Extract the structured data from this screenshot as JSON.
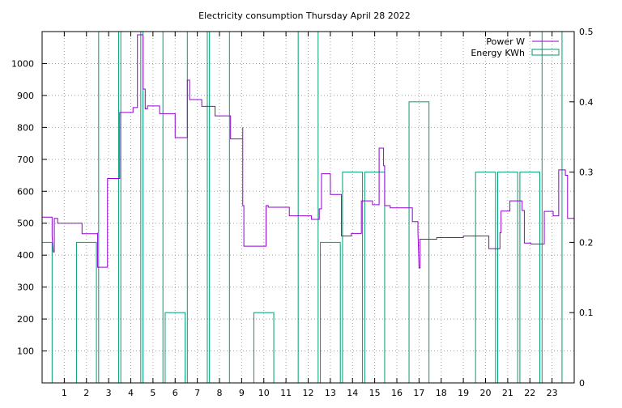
{
  "chart_data": {
    "type": "line",
    "title": "Electricity consumption Thursday April 28 2022",
    "xlabel": "",
    "ylabel": "",
    "y2label": "",
    "xlim": [
      0,
      24
    ],
    "ylim": [
      0,
      1100
    ],
    "y2lim": [
      0,
      0.5
    ],
    "grid": true,
    "legend_position": "top-right",
    "x_ticks": [
      "1",
      "2",
      "3",
      "4",
      "5",
      "6",
      "7",
      "8",
      "9",
      "10",
      "11",
      "12",
      "13",
      "14",
      "15",
      "16",
      "17",
      "18",
      "19",
      "20",
      "21",
      "22",
      "23"
    ],
    "y_ticks": [
      "100",
      "200",
      "300",
      "400",
      "500",
      "600",
      "700",
      "800",
      "900",
      "1000"
    ],
    "y2_ticks": [
      "0",
      "0.1",
      "0.2",
      "0.3",
      "0.4",
      "0.5"
    ],
    "colors": {
      "power": "#9400d3",
      "energy": "#009e73",
      "grid": "#a0a0a0"
    },
    "series": [
      {
        "name": "Power W",
        "axis": "y1",
        "style": "step-line",
        "points": [
          [
            0.0,
            519
          ],
          [
            0.45,
            519
          ],
          [
            0.45,
            460
          ],
          [
            0.5,
            410
          ],
          [
            0.55,
            410
          ],
          [
            0.55,
            515
          ],
          [
            0.7,
            515
          ],
          [
            0.7,
            500
          ],
          [
            1.8,
            500
          ],
          [
            1.8,
            467
          ],
          [
            2.5,
            467
          ],
          [
            2.5,
            470
          ],
          [
            2.5,
            362
          ],
          [
            2.95,
            362
          ],
          [
            2.95,
            640
          ],
          [
            3.5,
            640
          ],
          [
            3.5,
            847
          ],
          [
            4.1,
            847
          ],
          [
            4.1,
            862
          ],
          [
            4.3,
            862
          ],
          [
            4.3,
            1090
          ],
          [
            4.55,
            1090
          ],
          [
            4.55,
            920
          ],
          [
            4.65,
            920
          ],
          [
            4.65,
            858
          ],
          [
            4.75,
            858
          ],
          [
            4.75,
            867
          ],
          [
            5.3,
            867
          ],
          [
            5.3,
            843
          ],
          [
            6.0,
            843
          ],
          [
            6.0,
            768
          ],
          [
            6.55,
            768
          ],
          [
            6.55,
            948
          ],
          [
            6.65,
            948
          ],
          [
            6.65,
            887
          ],
          [
            7.2,
            887
          ],
          [
            7.2,
            866
          ],
          [
            7.8,
            866
          ],
          [
            7.8,
            836
          ],
          [
            8.5,
            836
          ],
          [
            8.5,
            764
          ],
          [
            9.05,
            764
          ],
          [
            9.05,
            800
          ],
          [
            9.05,
            555
          ],
          [
            9.1,
            555
          ],
          [
            9.1,
            428
          ],
          [
            10.1,
            428
          ],
          [
            10.1,
            555
          ],
          [
            10.2,
            555
          ],
          [
            10.2,
            550
          ],
          [
            11.15,
            550
          ],
          [
            11.15,
            523
          ],
          [
            12.15,
            523
          ],
          [
            12.15,
            512
          ],
          [
            12.5,
            512
          ],
          [
            12.5,
            545
          ],
          [
            12.6,
            545
          ],
          [
            12.6,
            655
          ],
          [
            13.0,
            655
          ],
          [
            13.0,
            590
          ],
          [
            13.5,
            590
          ],
          [
            13.5,
            460
          ],
          [
            13.95,
            460
          ],
          [
            13.95,
            468
          ],
          [
            14.4,
            468
          ],
          [
            14.4,
            570
          ],
          [
            14.9,
            570
          ],
          [
            14.9,
            558
          ],
          [
            15.2,
            558
          ],
          [
            15.2,
            735
          ],
          [
            15.4,
            735
          ],
          [
            15.4,
            680
          ],
          [
            15.45,
            680
          ],
          [
            15.45,
            555
          ],
          [
            15.7,
            555
          ],
          [
            15.7,
            548
          ],
          [
            16.7,
            548
          ],
          [
            16.7,
            505
          ],
          [
            16.95,
            505
          ],
          [
            16.95,
            476
          ],
          [
            17.0,
            360
          ],
          [
            17.05,
            360
          ],
          [
            17.05,
            450
          ],
          [
            17.8,
            450
          ],
          [
            17.8,
            455
          ],
          [
            19.0,
            455
          ],
          [
            19.0,
            460
          ],
          [
            20.15,
            460
          ],
          [
            20.15,
            420
          ],
          [
            20.65,
            420
          ],
          [
            20.65,
            470
          ],
          [
            20.7,
            470
          ],
          [
            20.7,
            538
          ],
          [
            21.1,
            538
          ],
          [
            21.1,
            570
          ],
          [
            21.65,
            570
          ],
          [
            21.65,
            540
          ],
          [
            21.75,
            540
          ],
          [
            21.75,
            438
          ],
          [
            22.05,
            438
          ],
          [
            22.05,
            435
          ],
          [
            22.65,
            435
          ],
          [
            22.65,
            537
          ],
          [
            23.05,
            537
          ],
          [
            23.05,
            523
          ],
          [
            23.3,
            523
          ],
          [
            23.3,
            667
          ],
          [
            23.6,
            667
          ],
          [
            23.6,
            650
          ],
          [
            23.7,
            650
          ],
          [
            23.7,
            515
          ],
          [
            24.0,
            515
          ]
        ]
      },
      {
        "name": "Energy KWh",
        "axis": "y2",
        "style": "hollow-bars",
        "bars": [
          {
            "x": 0.0,
            "value": 0.2
          },
          {
            "x": 1.0,
            "value": 0
          },
          {
            "x": 2.0,
            "value": 0.2
          },
          {
            "x": 3.0,
            "value": 0.5
          },
          {
            "x": 4.0,
            "value": 0.5
          },
          {
            "x": 5.0,
            "value": 0.5
          },
          {
            "x": 6.0,
            "value": 0.1
          },
          {
            "x": 7.0,
            "value": 0.5
          },
          {
            "x": 8.0,
            "value": 0.5
          },
          {
            "x": 9.0,
            "value": 0
          },
          {
            "x": 10.0,
            "value": 0.1
          },
          {
            "x": 11.0,
            "value": 0
          },
          {
            "x": 12.0,
            "value": 0.5
          },
          {
            "x": 13.0,
            "value": 0.2
          },
          {
            "x": 14.0,
            "value": 0.3
          },
          {
            "x": 15.0,
            "value": 0.3
          },
          {
            "x": 16.0,
            "value": 0
          },
          {
            "x": 17.0,
            "value": 0.4
          },
          {
            "x": 18.0,
            "value": 0
          },
          {
            "x": 19.0,
            "value": 0
          },
          {
            "x": 20.0,
            "value": 0.3
          },
          {
            "x": 21.0,
            "value": 0.3
          },
          {
            "x": 22.0,
            "value": 0.3
          },
          {
            "x": 23.0,
            "value": 0.5
          }
        ]
      }
    ]
  }
}
